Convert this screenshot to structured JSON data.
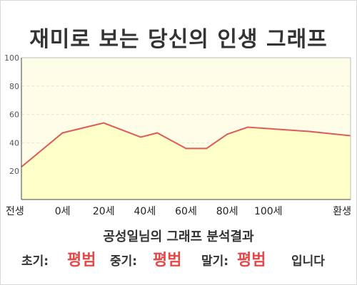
{
  "title": "재미로 보는 당신의 인생 그래프",
  "summary": "공성일님의 그래프 분석결과",
  "results": {
    "early_label": "초기:",
    "early_value": "평범",
    "middle_label": "중기:",
    "middle_value": "평범",
    "late_label": "말기:",
    "late_value": "평범",
    "suffix": "입니다"
  },
  "colors": {
    "line": "#e05a5a",
    "area": "#ffffc8",
    "plot_bg": "#fdfde8",
    "grid": "#e6e6cc",
    "highlight_text": "#e24a4a"
  },
  "chart_data": {
    "type": "area",
    "categories": [
      "전생",
      "0세",
      "20세",
      "40세",
      "60세",
      "80세",
      "100세",
      "환생"
    ],
    "x": [
      -1,
      0,
      1,
      1.9,
      2.3,
      3,
      3.5,
      4,
      4.5,
      5,
      6,
      7
    ],
    "values": [
      23,
      47,
      54,
      44,
      47,
      36,
      36,
      46,
      51,
      50,
      48,
      45
    ],
    "ylim": [
      0,
      100
    ],
    "yticks": [
      20,
      40,
      60,
      80,
      100
    ],
    "grid": true,
    "title": "재미로 보는 당신의 인생 그래프"
  }
}
